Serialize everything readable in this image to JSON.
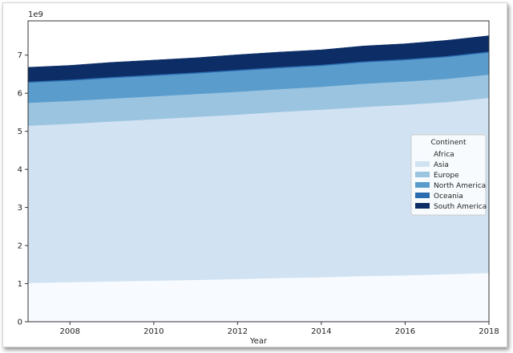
{
  "chart_data": {
    "type": "area",
    "stacked": true,
    "x": [
      2007,
      2008,
      2009,
      2010,
      2011,
      2012,
      2013,
      2014,
      2015,
      2016,
      2017,
      2018
    ],
    "xlim": [
      2007,
      2018
    ],
    "ylim": [
      0,
      7.9
    ],
    "x_ticks": [
      2008,
      2010,
      2012,
      2014,
      2016,
      2018
    ],
    "y_ticks": [
      0,
      1,
      2,
      3,
      4,
      5,
      6,
      7
    ],
    "y_offset_label": "1e9",
    "xlabel": "Year",
    "ylabel": "",
    "legend": {
      "title": "Continent",
      "placement": "right"
    },
    "series": [
      {
        "name": "Africa",
        "color": "#f7fbff",
        "values": [
          1.02,
          1.04,
          1.06,
          1.08,
          1.1,
          1.12,
          1.15,
          1.17,
          1.2,
          1.22,
          1.25,
          1.28
        ]
      },
      {
        "name": "Asia",
        "color": "#d1e2f2",
        "values": [
          4.13,
          4.16,
          4.2,
          4.24,
          4.28,
          4.32,
          4.36,
          4.4,
          4.44,
          4.48,
          4.52,
          4.6
        ]
      },
      {
        "name": "Europe",
        "color": "#9ac4e0",
        "values": [
          0.6,
          0.6,
          0.6,
          0.6,
          0.6,
          0.6,
          0.6,
          0.6,
          0.61,
          0.61,
          0.61,
          0.61
        ]
      },
      {
        "name": "North America",
        "color": "#5a9dcd",
        "values": [
          0.53,
          0.53,
          0.54,
          0.54,
          0.54,
          0.55,
          0.55,
          0.55,
          0.56,
          0.56,
          0.57,
          0.58
        ]
      },
      {
        "name": "Oceania",
        "color": "#2b6cb0",
        "values": [
          0.03,
          0.03,
          0.03,
          0.03,
          0.03,
          0.03,
          0.03,
          0.03,
          0.03,
          0.03,
          0.03,
          0.03
        ]
      },
      {
        "name": "South America",
        "color": "#0c2d66",
        "values": [
          0.37,
          0.37,
          0.38,
          0.38,
          0.38,
          0.39,
          0.39,
          0.39,
          0.4,
          0.4,
          0.41,
          0.41
        ]
      }
    ]
  }
}
